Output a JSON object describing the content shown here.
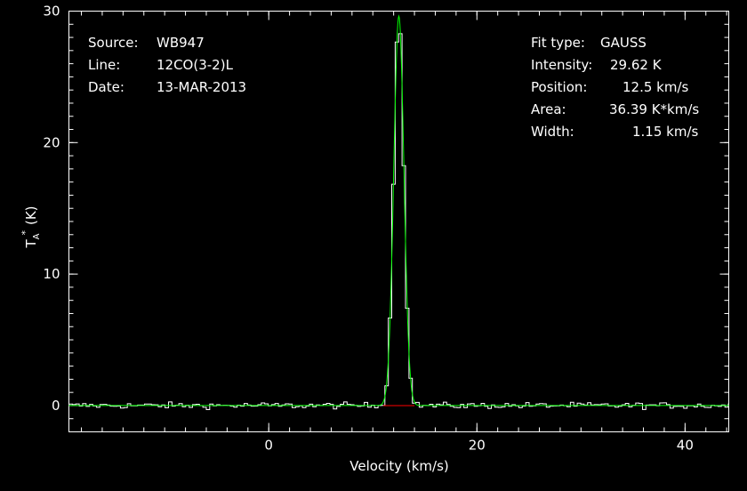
{
  "info_left": [
    {
      "key": "Source:",
      "value": "WB947"
    },
    {
      "key": "Line:",
      "value": "12CO(3-2)L"
    },
    {
      "key": "Date:",
      "value": "13-MAR-2013"
    }
  ],
  "info_right": [
    {
      "key": "Fit type:",
      "value": "GAUSS"
    },
    {
      "key": "Intensity:",
      "value": "29.62 K"
    },
    {
      "key": "Position:",
      "value": "12.5 km/s"
    },
    {
      "key": "Area:",
      "value": "36.39 K*km/s"
    },
    {
      "key": "Width:",
      "value": "1.15 km/s"
    }
  ],
  "colors": {
    "background": "#000000",
    "axes": "#ffffff",
    "spectrum": "#ffffff",
    "fit": "#00ff00",
    "baseline": "#ff0000"
  },
  "chart_data": {
    "type": "line",
    "xlabel": "Velocity (km/s)",
    "ylabel_main": "T",
    "ylabel_sub": "A",
    "ylabel_sup": "*",
    "ylabel_unit": "(K)",
    "xlim": [
      -19.2,
      44.2
    ],
    "ylim": [
      -2.0,
      30.0
    ],
    "xticks": [
      0,
      20,
      40
    ],
    "yticks": [
      0,
      10,
      20,
      30
    ],
    "minor_x_step": 2,
    "minor_y_step": 1,
    "grid": false,
    "gauss_fit": {
      "amplitude": 29.62,
      "center": 12.5,
      "fwhm": 1.15
    },
    "baseline_segment": [
      11.0,
      14.0
    ],
    "noise_rms": 0.12,
    "channel_width": 0.33
  }
}
